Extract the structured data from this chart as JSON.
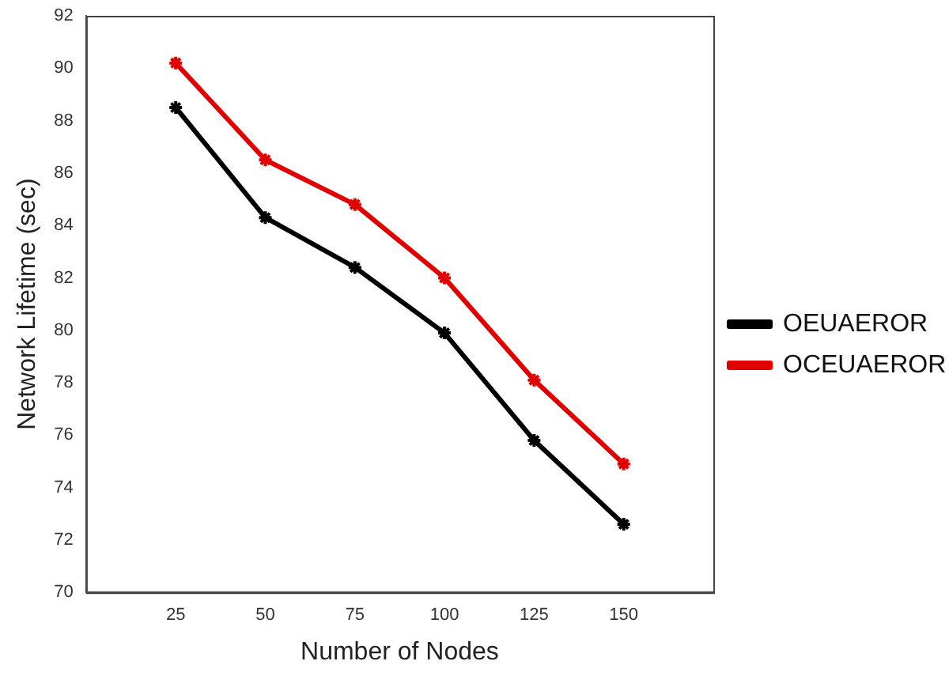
{
  "chart_data": {
    "type": "line",
    "xlabel": "Number of Nodes",
    "ylabel": "Network Lifetime (sec)",
    "x": [
      25,
      50,
      75,
      100,
      125,
      150
    ],
    "series": [
      {
        "name": "OEUAEROR",
        "color": "#000000",
        "values": [
          88.5,
          84.3,
          82.4,
          79.9,
          75.8,
          72.6
        ]
      },
      {
        "name": "OCEUAEROR",
        "color": "#e00000",
        "values": [
          90.2,
          86.5,
          84.8,
          82.0,
          78.1,
          74.9
        ]
      }
    ],
    "xlim": [
      0,
      175
    ],
    "xticks": [
      25,
      50,
      75,
      100,
      125,
      150
    ],
    "ylim": [
      70,
      92
    ],
    "yticks": [
      70,
      72,
      74,
      76,
      78,
      80,
      82,
      84,
      86,
      88,
      90,
      92
    ],
    "grid": false,
    "legend": "right",
    "marker": "cross",
    "line_style": "solid"
  }
}
